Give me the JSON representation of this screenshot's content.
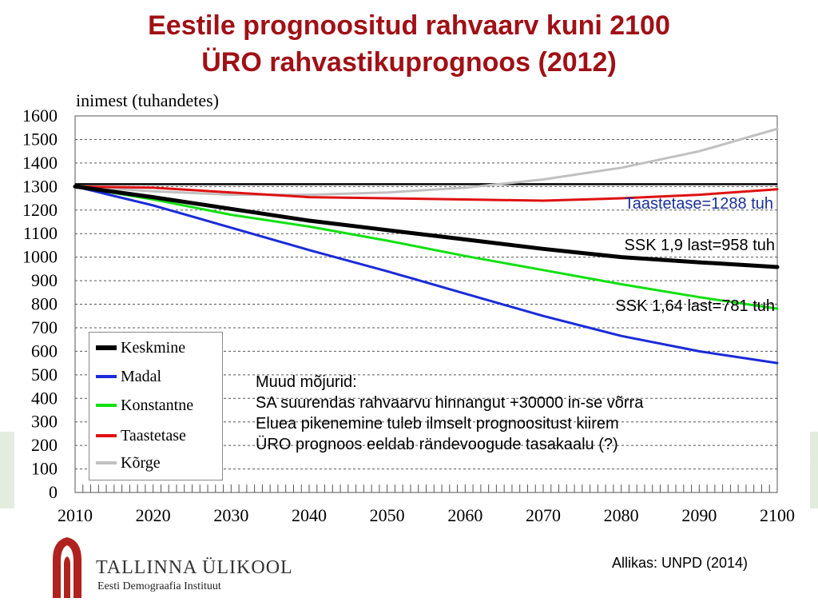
{
  "title_line1": "Eestile prognoositud rahvaarv kuni 2100",
  "title_line2": "ÜRO rahvastikuprognoos (2012)",
  "chart_data": {
    "type": "line",
    "ylabel": "inimest (tuhandetes)",
    "xlabel": "",
    "xlim": [
      2010,
      2100
    ],
    "ylim": [
      0,
      1600
    ],
    "x_ticks": [
      2010,
      2020,
      2030,
      2040,
      2050,
      2060,
      2070,
      2080,
      2090,
      2100
    ],
    "y_ticks": [
      0,
      100,
      200,
      300,
      400,
      500,
      600,
      700,
      800,
      900,
      1000,
      1100,
      1200,
      1300,
      1400,
      1500,
      1600
    ],
    "grid": "horizontal-dashed",
    "legend_position": "bottom-left",
    "x": [
      2010,
      2020,
      2030,
      2040,
      2050,
      2060,
      2070,
      2080,
      2090,
      2100
    ],
    "series": [
      {
        "name": "Keskmine",
        "color": "#000000",
        "values": [
          1300,
          1255,
          1205,
          1155,
          1115,
          1075,
          1035,
          1000,
          978,
          958
        ]
      },
      {
        "name": "Madal",
        "color": "#1a2bd9",
        "values": [
          1300,
          1220,
          1125,
          1030,
          940,
          845,
          750,
          665,
          600,
          550
        ]
      },
      {
        "name": "Konstantne",
        "color": "#11e011",
        "values": [
          1300,
          1245,
          1180,
          1130,
          1070,
          1005,
          945,
          885,
          830,
          781
        ]
      },
      {
        "name": "Taastetase",
        "color": "#e01010",
        "values": [
          1300,
          1295,
          1275,
          1255,
          1250,
          1245,
          1240,
          1250,
          1265,
          1288
        ]
      },
      {
        "name": "Kõrge",
        "color": "#c0c0c0",
        "values": [
          1300,
          1280,
          1265,
          1265,
          1275,
          1295,
          1330,
          1380,
          1450,
          1545
        ]
      }
    ],
    "reference_line": {
      "value": 1310,
      "color": "#000000"
    },
    "annotations": {
      "taastetase": "Taastetase=1288 tuh",
      "keskmine": "SSK 1,9 last=958 tuh",
      "konstantne": "SSK 1,64 last=781 tuh"
    }
  },
  "note": {
    "heading": "Muud mõjurid:",
    "lines": [
      "SA suurendas rahvaarvu hinnangut +30000 in-se võrra",
      "Eluea pikenemine tuleb ilmselt prognoositust kiirem",
      "ÜRO prognoos eeldab rändevoogude tasakaalu (?)"
    ]
  },
  "footer": {
    "org_name": "TALLINNA ÜLIKOOL",
    "org_sub": "Eesti Demograafia Instituut",
    "source": "Allikas: UNPD (2014)"
  }
}
